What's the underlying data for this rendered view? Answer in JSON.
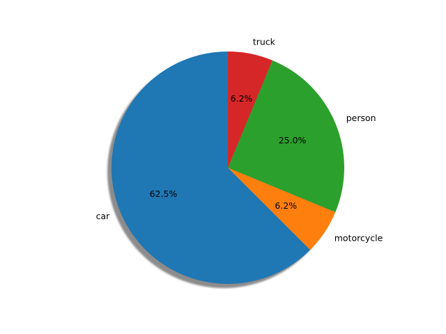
{
  "chart_data": {
    "type": "pie",
    "start_angle_deg": 90,
    "direction": "counterclockwise",
    "shadow": true,
    "slices": [
      {
        "label": "car",
        "value": 62.5,
        "pct_text": "62.5%",
        "color": "#1f77b4"
      },
      {
        "label": "motorcycle",
        "value": 6.25,
        "pct_text": "6.2%",
        "color": "#ff7f0e"
      },
      {
        "label": "person",
        "value": 25.0,
        "pct_text": "25.0%",
        "color": "#2ca02c"
      },
      {
        "label": "truck",
        "value": 6.25,
        "pct_text": "6.2%",
        "color": "#d62728"
      }
    ]
  }
}
